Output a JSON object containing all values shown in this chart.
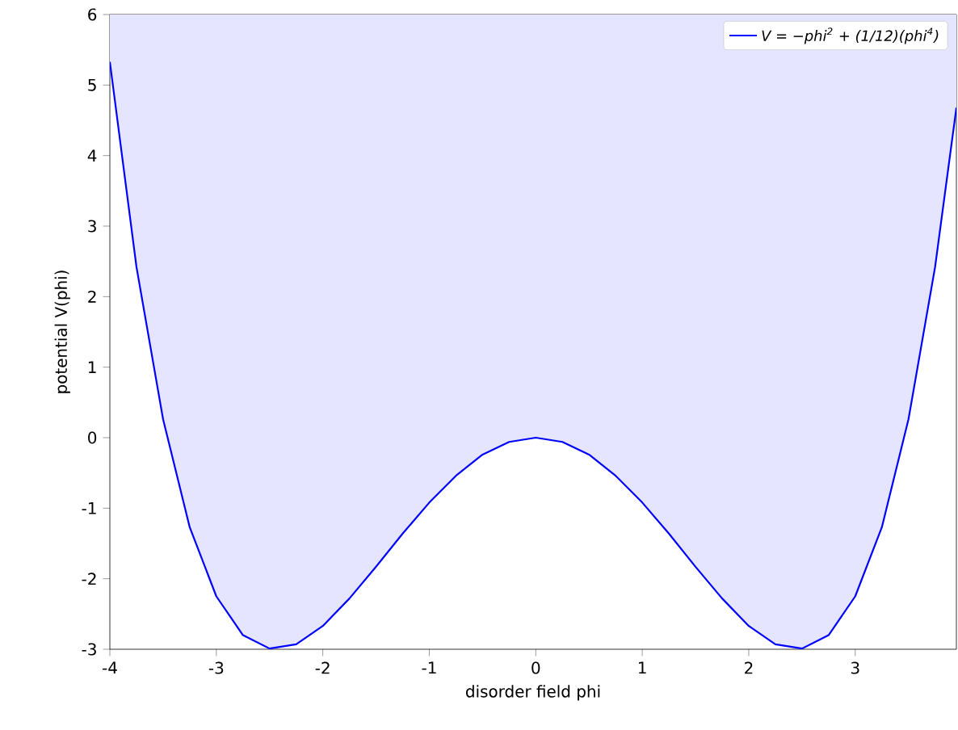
{
  "chart_data": {
    "type": "line",
    "xlabel": "disorder field phi",
    "ylabel": "potential V(phi)",
    "x": [
      -4,
      -3.75,
      -3.5,
      -3.25,
      -3,
      -2.75,
      -2.5,
      -2.25,
      -2,
      -1.75,
      -1.5,
      -1.25,
      -1,
      -0.75,
      -0.5,
      -0.25,
      0,
      0.25,
      0.5,
      0.75,
      1,
      1.25,
      1.5,
      1.75,
      2,
      2.25,
      2.5,
      2.75,
      3,
      3.25,
      3.5,
      3.75,
      3.95
    ],
    "series": [
      {
        "name": "V = −phi$^{2}$ + (1/12)(phi$^{4}$)",
        "color": "#0000ff",
        "values": [
          5.33,
          2.42,
          0.26,
          -1.27,
          -2.25,
          -2.8,
          -2.99,
          -2.93,
          -2.67,
          -2.28,
          -1.83,
          -1.36,
          -0.92,
          -0.54,
          -0.24,
          -0.06,
          0,
          -0.06,
          -0.24,
          -0.54,
          -0.92,
          -1.36,
          -1.83,
          -2.28,
          -2.67,
          -2.93,
          -2.99,
          -2.8,
          -2.25,
          -1.27,
          0.26,
          2.42,
          4.68
        ],
        "lower": [
          5.33,
          2.42,
          0.26,
          -1.27,
          -2.25,
          -2.8,
          -2.99,
          -2.93,
          -2.67,
          -2.28,
          -1.83,
          -1.36,
          -0.92,
          -0.54,
          -0.24,
          -0.06,
          0,
          -0.06,
          -0.24,
          -0.54,
          -0.92,
          -1.36,
          -1.83,
          -2.28,
          -2.67,
          -2.93,
          -2.99,
          -2.8,
          -2.25,
          -1.27,
          0.26,
          2.42,
          4.68
        ],
        "upper": [
          6,
          6,
          6,
          6,
          6,
          6,
          6,
          6,
          6,
          6,
          6,
          6,
          6,
          6,
          6,
          6,
          6,
          6,
          6,
          6,
          6,
          6,
          6,
          6,
          6,
          6,
          6,
          6,
          6,
          6,
          6,
          6,
          6
        ]
      }
    ],
    "xlim": [
      -4,
      3.95
    ],
    "ylim": [
      -3,
      6
    ],
    "xticks": [
      -4,
      -3,
      -2,
      -1,
      0,
      1,
      2,
      3
    ],
    "yticks": [
      -3,
      -2,
      -1,
      0,
      1,
      2,
      3,
      4,
      5,
      6
    ],
    "legend": "top right",
    "grid": false,
    "marker": "none",
    "line_style": "solid"
  }
}
